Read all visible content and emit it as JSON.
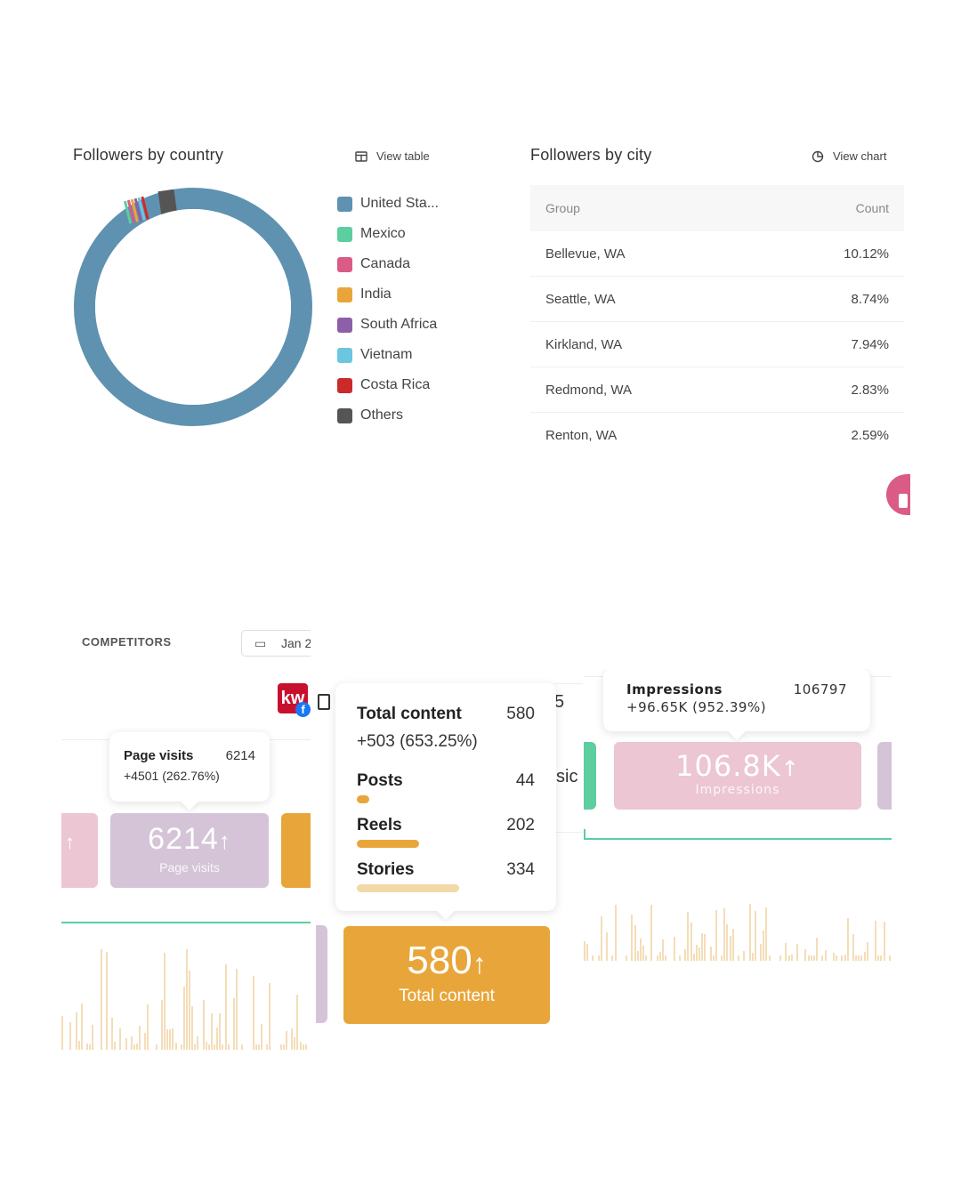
{
  "country_panel": {
    "title": "Followers by country",
    "view_table_label": "View table",
    "legend": [
      {
        "label": "United Sta...",
        "color": "#5f92b0"
      },
      {
        "label": "Mexico",
        "color": "#5ccea0"
      },
      {
        "label": "Canada",
        "color": "#d95b86"
      },
      {
        "label": "India",
        "color": "#e8a63a"
      },
      {
        "label": "South Africa",
        "color": "#8c5fa8"
      },
      {
        "label": "Vietnam",
        "color": "#6cc6e0"
      },
      {
        "label": "Costa Rica",
        "color": "#cc2a2a"
      },
      {
        "label": "Others",
        "color": "#555555"
      }
    ]
  },
  "city_panel": {
    "title": "Followers by city",
    "view_chart_label": "View chart",
    "columns": [
      "Group",
      "Count"
    ],
    "rows": [
      {
        "group": "Bellevue, WA",
        "count": "10.12%"
      },
      {
        "group": "Seattle, WA",
        "count": "8.74%"
      },
      {
        "group": "Kirkland, WA",
        "count": "7.94%"
      },
      {
        "group": "Redmond, WA",
        "count": "2.83%"
      },
      {
        "group": "Renton, WA",
        "count": "2.59%"
      }
    ]
  },
  "competitors": {
    "label": "COMPETITORS",
    "date_label": "Jan 2",
    "logo_text": "kw"
  },
  "page_visits": {
    "tooltip_label": "Page visits",
    "tooltip_value": "6214",
    "tooltip_change": "+4501 (262.76%)",
    "kpi_value": "6214",
    "kpi_label": "Page visits",
    "arrow": "↑"
  },
  "total_content": {
    "tooltip_label": "Total content",
    "tooltip_value": "580",
    "tooltip_change": "+503 (653.25%)",
    "breakdown": [
      {
        "label": "Posts",
        "value": "44"
      },
      {
        "label": "Reels",
        "value": "202"
      },
      {
        "label": "Stories",
        "value": "334"
      }
    ],
    "kpi_value": "580",
    "kpi_label": "Total content",
    "arrow": "↑",
    "partial_text_1": "5",
    "partial_text_2": "sic"
  },
  "impressions": {
    "tooltip_label": "Impressions",
    "tooltip_value": "106797",
    "tooltip_change": "+96.65K (952.39%)",
    "kpi_value": "106.8K",
    "kpi_label": "Impressions",
    "arrow": "↑"
  },
  "colors": {
    "blue": "#5f92b0",
    "orange": "#e8a63a",
    "lavender": "#d5c4d8",
    "pink": "#ecc6d2",
    "green": "#5ccea0"
  }
}
